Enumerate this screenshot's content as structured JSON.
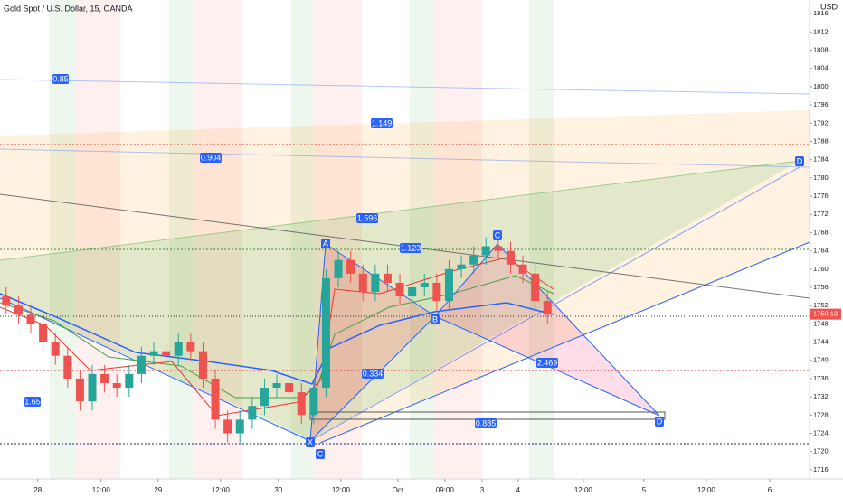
{
  "header": {
    "title": "Gold Spot / U.S. Dollar, 15, OANDA",
    "currency": "USD"
  },
  "chart_data": {
    "type": "candlestick",
    "open": [
      1754,
      1752,
      1750,
      1748,
      1744,
      1741,
      1736,
      1731,
      1737,
      1735,
      1734,
      1737,
      1741,
      1742,
      1741,
      1744,
      1742,
      1736,
      1727,
      1724,
      1727,
      1730,
      1734,
      1735,
      1733,
      1728,
      1734,
      1758,
      1762,
      1759,
      1755,
      1759,
      1757,
      1754,
      1756,
      1757,
      1753,
      1760,
      1761,
      1763,
      1765,
      1764,
      1761,
      1759,
      1753
    ],
    "high": [
      1756,
      1754,
      1752,
      1750,
      1746,
      1743,
      1738,
      1739,
      1739,
      1737,
      1739,
      1743,
      1744,
      1744,
      1746,
      1746,
      1744,
      1738,
      1729,
      1729,
      1732,
      1736,
      1737,
      1737,
      1735,
      1736,
      1760,
      1764,
      1764,
      1761,
      1761,
      1761,
      1759,
      1758,
      1759,
      1759,
      1762,
      1763,
      1765,
      1767,
      1767,
      1766,
      1763,
      1761,
      1755
    ],
    "low": [
      1750,
      1748,
      1746,
      1742,
      1739,
      1734,
      1729,
      1729,
      1733,
      1732,
      1732,
      1735,
      1739,
      1739,
      1739,
      1740,
      1734,
      1725,
      1722,
      1722,
      1725,
      1728,
      1732,
      1731,
      1726,
      1726,
      1732,
      1756,
      1757,
      1753,
      1753,
      1755,
      1752,
      1752,
      1754,
      1751,
      1751,
      1758,
      1759,
      1761,
      1762,
      1759,
      1757,
      1751,
      1748
    ],
    "close": [
      1752,
      1750,
      1748,
      1744,
      1741,
      1736,
      1731,
      1737,
      1735,
      1734,
      1737,
      1741,
      1742,
      1741,
      1744,
      1742,
      1736,
      1727,
      1724,
      1727,
      1730,
      1734,
      1735,
      1733,
      1728,
      1734,
      1758,
      1762,
      1759,
      1755,
      1759,
      1757,
      1754,
      1756,
      1757,
      1753,
      1760,
      1761,
      1763,
      1765,
      1764,
      1761,
      1759,
      1753,
      1750
    ],
    "up_color": "#26a69a",
    "down_color": "#ef5350",
    "ylim": [
      1714,
      1819
    ],
    "yticks": [
      1716,
      1720,
      1724,
      1728,
      1732,
      1736,
      1740,
      1744,
      1748,
      1752,
      1756,
      1760,
      1764,
      1768,
      1772,
      1776,
      1780,
      1784,
      1788,
      1792,
      1796,
      1800,
      1804,
      1808,
      1812,
      1816
    ],
    "xlim": [
      -0.5,
      65.3
    ],
    "xticks": [
      {
        "value": 2.57,
        "label": "28"
      },
      {
        "value": 7.72,
        "label": "12:00"
      },
      {
        "value": 12.35,
        "label": "29"
      },
      {
        "value": 17.43,
        "label": "12:00"
      },
      {
        "value": 22.13,
        "label": "30"
      },
      {
        "value": 27.21,
        "label": "12:00"
      },
      {
        "value": 31.84,
        "label": "Oct"
      },
      {
        "value": 35.66,
        "label": "09:00"
      },
      {
        "value": 38.68,
        "label": "3"
      },
      {
        "value": 41.62,
        "label": "4"
      },
      {
        "value": 46.91,
        "label": "12:00"
      },
      {
        "value": 51.84,
        "label": "5"
      },
      {
        "value": 56.91,
        "label": "12:00"
      },
      {
        "value": 62.06,
        "label": "6"
      }
    ],
    "last_price": 1750.13,
    "annotations": [
      "0.85",
      "1.149",
      "0.904",
      "1.596",
      "1.123",
      "0.334",
      "2.469",
      "1.65",
      "0.885",
      "X",
      "A",
      "B",
      "C",
      "D",
      "C",
      "D"
    ]
  }
}
